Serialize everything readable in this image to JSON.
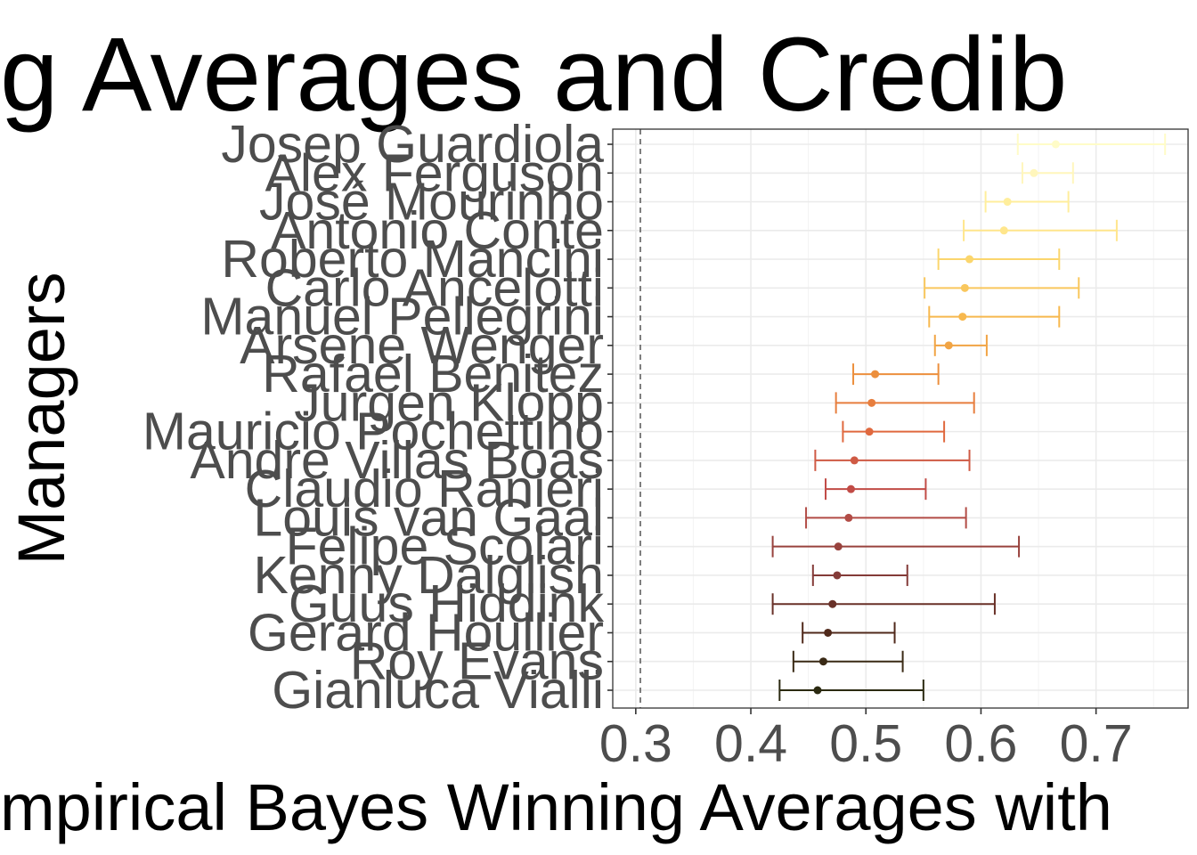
{
  "chart_data": {
    "type": "scatter",
    "title": "g Averages and Credib",
    "xlabel": "mpirical Bayes Winning Averages with",
    "ylabel": "Managers",
    "xlim": [
      0.28,
      0.78
    ],
    "x_ticks": [
      "0.3",
      "0.4",
      "0.5",
      "0.6",
      "0.7"
    ],
    "reference_line": 0.304,
    "grid": true,
    "legend": "none",
    "managers": [
      {
        "name": "Josep Guardiola",
        "estimate": 0.665,
        "low": 0.632,
        "high": 0.76,
        "color": "#fffcc8"
      },
      {
        "name": "Alex Ferguson",
        "estimate": 0.646,
        "low": 0.636,
        "high": 0.68,
        "color": "#fff6bc"
      },
      {
        "name": "José Mourinho",
        "estimate": 0.623,
        "low": 0.604,
        "high": 0.676,
        "color": "#ffee9c"
      },
      {
        "name": "Antonio Conte",
        "estimate": 0.62,
        "low": 0.585,
        "high": 0.718,
        "color": "#ffe68c"
      },
      {
        "name": "Roberto Mancini",
        "estimate": 0.59,
        "low": 0.563,
        "high": 0.668,
        "color": "#fbd66d"
      },
      {
        "name": "Carlo Ancelotti",
        "estimate": 0.586,
        "low": 0.551,
        "high": 0.685,
        "color": "#f9c75d"
      },
      {
        "name": "Manuel Pellegrini",
        "estimate": 0.584,
        "low": 0.555,
        "high": 0.668,
        "color": "#f7b84e"
      },
      {
        "name": "Arsene Wenger",
        "estimate": 0.572,
        "low": 0.56,
        "high": 0.605,
        "color": "#f1a444"
      },
      {
        "name": "Rafael Benitez",
        "estimate": 0.508,
        "low": 0.489,
        "high": 0.563,
        "color": "#ec8f3d"
      },
      {
        "name": "Jurgen Klopp",
        "estimate": 0.505,
        "low": 0.474,
        "high": 0.594,
        "color": "#e77e3e"
      },
      {
        "name": "Mauricio Pochettino",
        "estimate": 0.503,
        "low": 0.48,
        "high": 0.568,
        "color": "#e0693f"
      },
      {
        "name": "Andre Villas Boas",
        "estimate": 0.49,
        "low": 0.456,
        "high": 0.59,
        "color": "#cf5a44"
      },
      {
        "name": "Claudio Ranieri",
        "estimate": 0.487,
        "low": 0.465,
        "high": 0.552,
        "color": "#c14b46"
      },
      {
        "name": "Louis van Gaal",
        "estimate": 0.485,
        "low": 0.448,
        "high": 0.587,
        "color": "#b24c46"
      },
      {
        "name": "Felipe Scolari",
        "estimate": 0.476,
        "low": 0.419,
        "high": 0.633,
        "color": "#98423d"
      },
      {
        "name": "Kenny Dalglish",
        "estimate": 0.475,
        "low": 0.454,
        "high": 0.536,
        "color": "#843b38"
      },
      {
        "name": "Guus Hiddink",
        "estimate": 0.471,
        "low": 0.419,
        "high": 0.612,
        "color": "#693128"
      },
      {
        "name": "Gerard Houllier",
        "estimate": 0.467,
        "low": 0.445,
        "high": 0.525,
        "color": "#50291b"
      },
      {
        "name": "Roy Evans",
        "estimate": 0.463,
        "low": 0.437,
        "high": 0.532,
        "color": "#3a2a15"
      },
      {
        "name": "Gianluca Vialli",
        "estimate": 0.458,
        "low": 0.425,
        "high": 0.55,
        "color": "#2b2a11"
      }
    ]
  }
}
